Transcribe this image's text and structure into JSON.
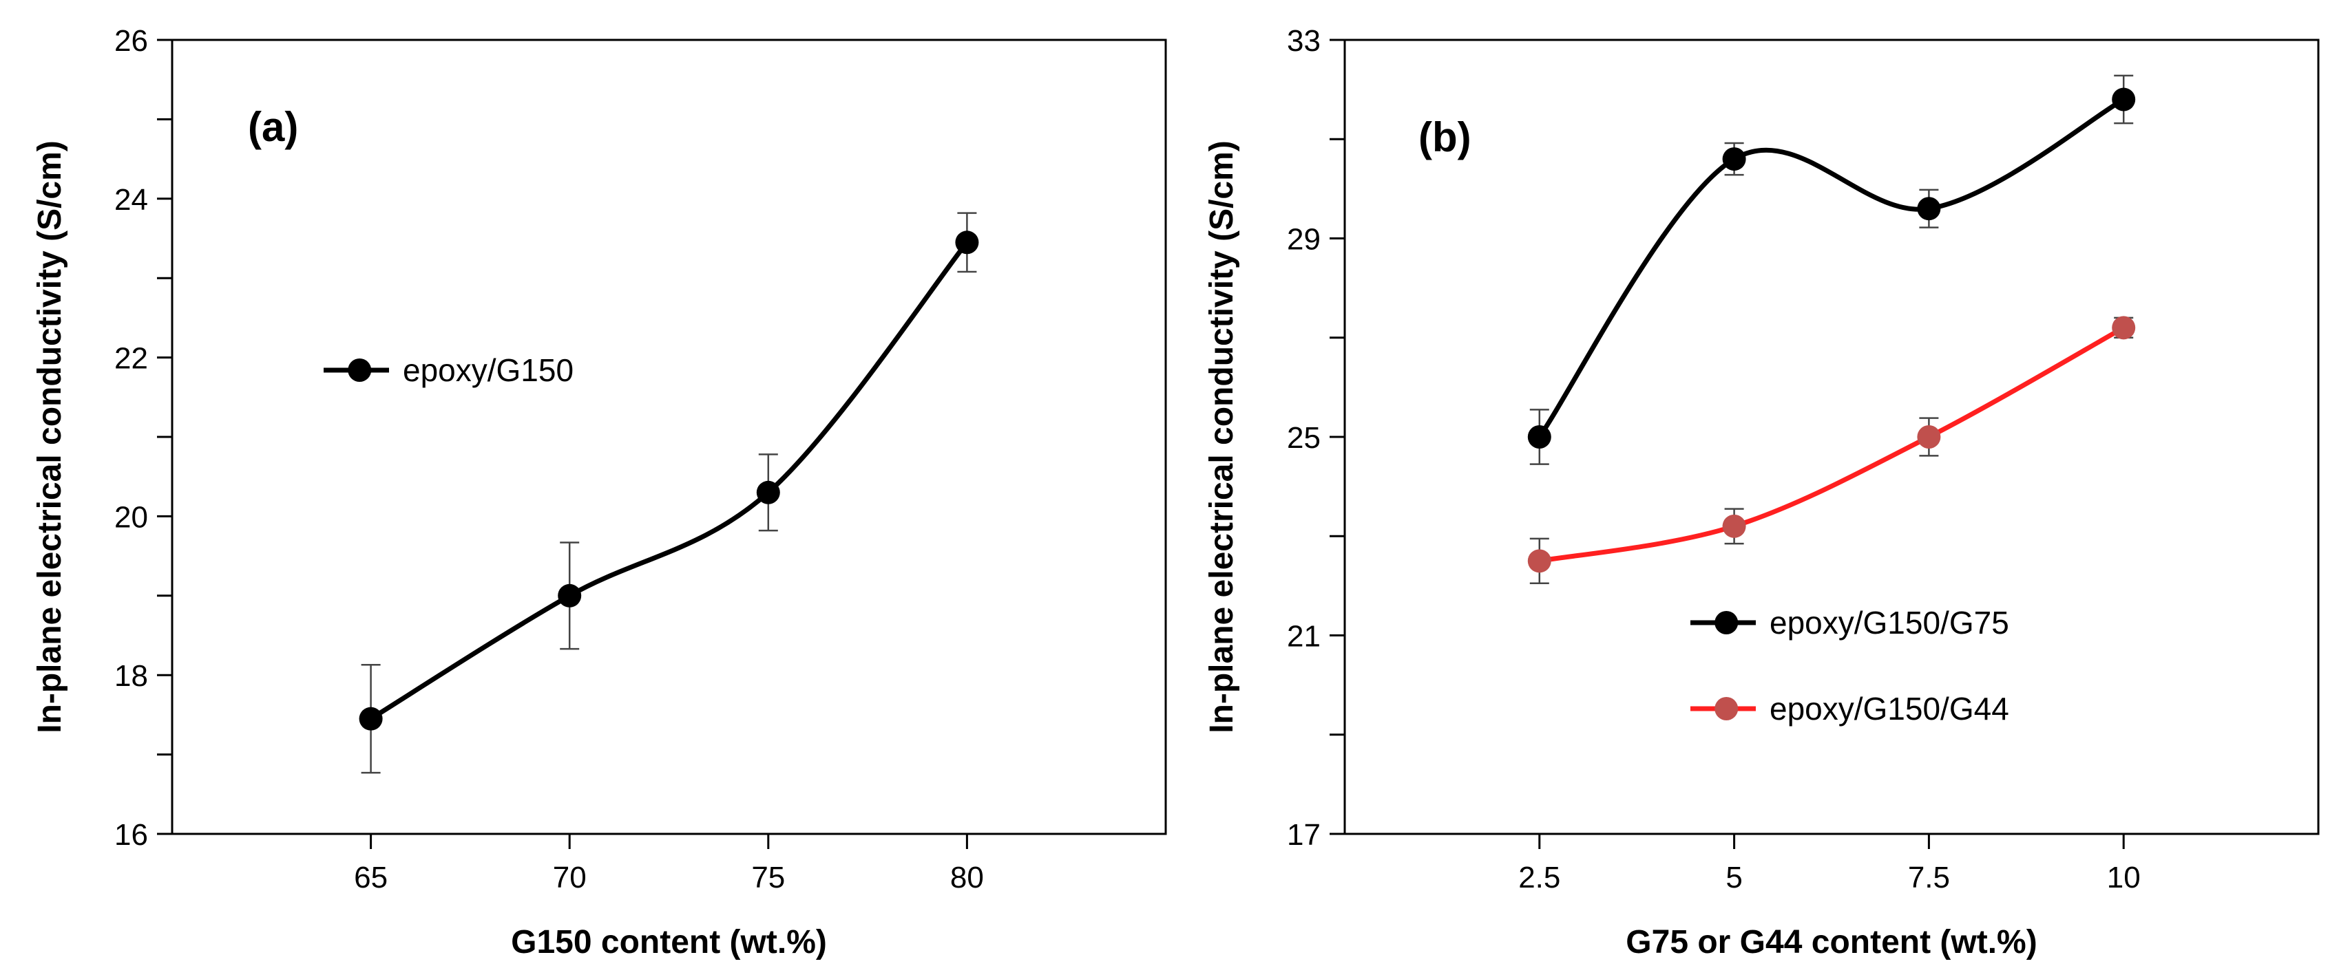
{
  "chart_data": [
    {
      "type": "line",
      "panel_label": "(a)",
      "xlabel": "G150 content (wt.%)",
      "ylabel": "In-plane electrical conductivity (S/cm)",
      "x": [
        65,
        70,
        75,
        80
      ],
      "xticks": [
        "65",
        "70",
        "75",
        "80"
      ],
      "xlim": [
        60,
        85
      ],
      "ylim": [
        16,
        26
      ],
      "yticks": [
        16,
        18,
        20,
        22,
        24,
        26
      ],
      "grid": false,
      "legend_position": "center-left",
      "series": [
        {
          "name": "epoxy/G150",
          "color": "#000000",
          "marker_color": "#000000",
          "values": [
            17.45,
            19.0,
            20.3,
            23.45
          ],
          "errors": [
            0.68,
            0.67,
            0.48,
            0.37
          ]
        }
      ]
    },
    {
      "type": "line",
      "panel_label": "(b)",
      "xlabel": "G75 or G44 content (wt.%)",
      "ylabel": "In-plane electrical conductivity (S/cm)",
      "x": [
        2.5,
        5,
        7.5,
        10
      ],
      "xticks": [
        "2.5",
        "5",
        "7.5",
        "10"
      ],
      "xlim": [
        0,
        12.5
      ],
      "ylim": [
        17,
        33
      ],
      "yticks": [
        17,
        21,
        25,
        29,
        33
      ],
      "grid": false,
      "legend_position": "bottom-right",
      "series": [
        {
          "name": "epoxy/G150/G75",
          "color": "#000000",
          "marker_color": "#000000",
          "values": [
            25.0,
            30.6,
            29.6,
            31.8
          ],
          "errors": [
            0.55,
            0.32,
            0.38,
            0.48
          ]
        },
        {
          "name": "epoxy/G150/G44",
          "color": "#ff2020",
          "marker_color": "#c0504d",
          "values": [
            22.5,
            23.2,
            25.0,
            27.2
          ],
          "errors": [
            0.45,
            0.35,
            0.38,
            0.2
          ]
        }
      ]
    }
  ]
}
